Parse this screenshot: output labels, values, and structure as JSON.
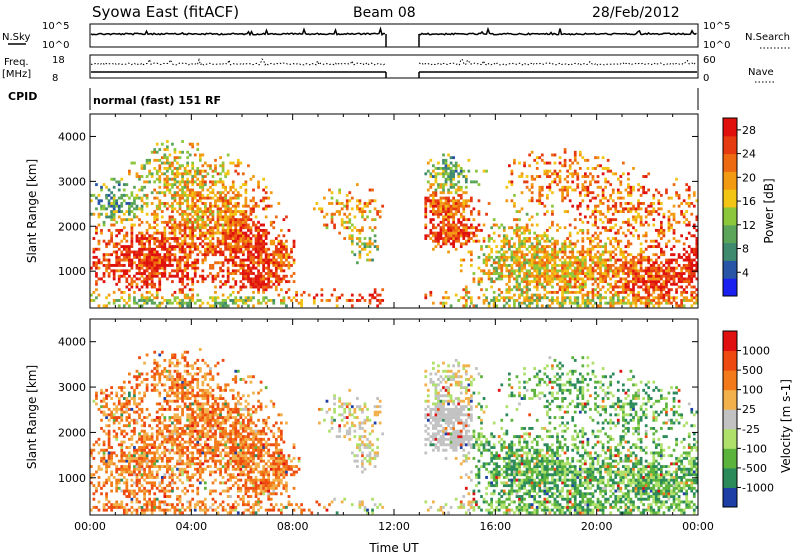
{
  "header": {
    "title": "Syowa East (fitACF)",
    "beam": "Beam 08",
    "date": "28/Feb/2012"
  },
  "labels": {
    "nsky": "N.Sky",
    "nsearch": "N.Search",
    "freq_line1": "Freq.",
    "freq_line2": "[MHz]",
    "nave": "Nave",
    "cpid": "CPID",
    "cpid_value": "normal (fast) 151 RF"
  },
  "panel_ticks": {
    "noise_left": [
      "10^5",
      "10^0"
    ],
    "noise_right": [
      "10^5",
      "10^0"
    ],
    "freq_left": [
      "18",
      "8"
    ],
    "freq_right": [
      "60",
      "0"
    ]
  },
  "chart_data": [
    {
      "type": "heatmap",
      "title": "",
      "ylabel": "Slant Range [km]",
      "xlabel": "",
      "yticks": [
        "1000",
        "2000",
        "3000",
        "4000"
      ],
      "ylim": [
        180,
        4500
      ],
      "colorbar": {
        "label": "Power [dB]",
        "ticks": [
          "4",
          "8",
          "12",
          "16",
          "20",
          "24",
          "28"
        ],
        "range": [
          0,
          30
        ],
        "colors": [
          "#1a20f0",
          "#2855a6",
          "#3e8a6f",
          "#5ba55a",
          "#8cc63a",
          "#f2c414",
          "#f29a12",
          "#ee6a10",
          "#e63a10",
          "#e0100c"
        ]
      }
    },
    {
      "type": "heatmap",
      "title": "",
      "ylabel": "Slant Range [km]",
      "xlabel": "Time UT",
      "xticks": [
        "00:00",
        "04:00",
        "08:00",
        "12:00",
        "16:00",
        "20:00",
        "00:00"
      ],
      "yticks": [
        "1000",
        "2000",
        "3000",
        "4000"
      ],
      "ylim": [
        180,
        4500
      ],
      "colorbar": {
        "label": "Velocity [m s-1]",
        "ticks": [
          "1000",
          "500",
          "100",
          "25",
          "-25",
          "-100",
          "-500",
          "-1000"
        ],
        "colors": [
          "#1d3fa6",
          "#2a8a5a",
          "#5cb33c",
          "#aee06a",
          "#c2c2c2",
          "#f2b14a",
          "#f27a18",
          "#ee4a10",
          "#e01010"
        ]
      }
    }
  ]
}
